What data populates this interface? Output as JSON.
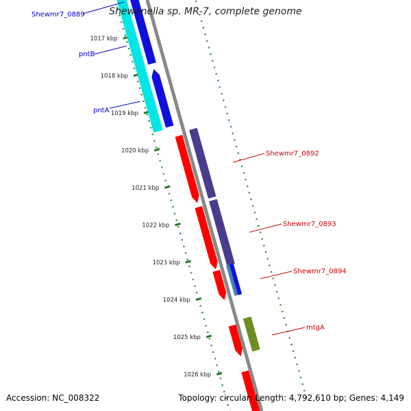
{
  "title": "Shewanella sp. MR-7, complete genome",
  "footer": {
    "accession": "Accession: NC_008322",
    "summary": "Topology: circular; Length: 4,792,610 bp; Genes: 4,149"
  },
  "colors": {
    "backbone": "#888888",
    "tick": "#1e7a1e",
    "dots": "#2e8b2e",
    "label_blue": "#0000cc",
    "label_red": "#cc0000",
    "cyan": "#00e5e5",
    "blue": "#1010dd",
    "purple": "#4a3c8c",
    "red": "#ff0000",
    "olive": "#6b8e23",
    "steel": "#4682b4"
  },
  "scale_labels": [
    "1017 kbp",
    "1018 kbp",
    "1019 kbp",
    "1020 kbp",
    "1021 kbp",
    "1022 kbp",
    "1023 kbp",
    "1024 kbp",
    "1025 kbp",
    "1026 kbp"
  ],
  "gene_labels": [
    {
      "text": "Shewmr7_0889",
      "color": "blue"
    },
    {
      "text": "pntB",
      "color": "blue"
    },
    {
      "text": "pntA",
      "color": "blue"
    },
    {
      "text": "Shewmr7_0892",
      "color": "red"
    },
    {
      "text": "Shewmr7_0893",
      "color": "red"
    },
    {
      "text": "Shewmr7_0894",
      "color": "red"
    },
    {
      "text": "mtgA",
      "color": "red"
    }
  ]
}
